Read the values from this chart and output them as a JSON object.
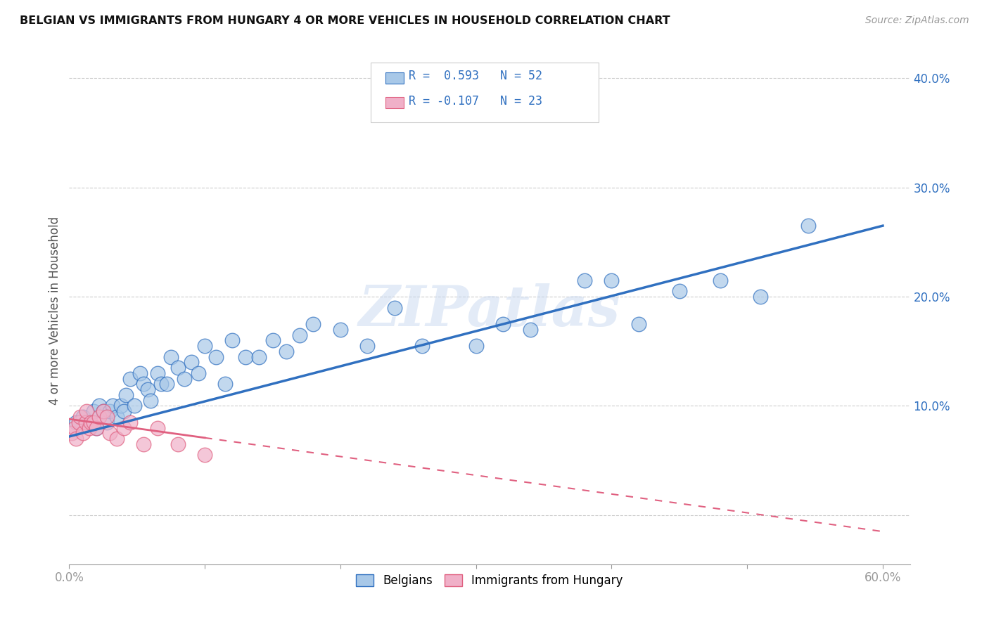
{
  "title": "BELGIAN VS IMMIGRANTS FROM HUNGARY 4 OR MORE VEHICLES IN HOUSEHOLD CORRELATION CHART",
  "source": "Source: ZipAtlas.com",
  "ylabel": "4 or more Vehicles in Household",
  "xlim": [
    0.0,
    0.62
  ],
  "ylim": [
    -0.045,
    0.42
  ],
  "ytick_vals": [
    0.0,
    0.1,
    0.2,
    0.3,
    0.4
  ],
  "ytick_labels": [
    "",
    "10.0%",
    "20.0%",
    "30.0%",
    "40.0%"
  ],
  "xtick_vals": [
    0.0,
    0.1,
    0.2,
    0.3,
    0.4,
    0.5,
    0.6
  ],
  "legend_line1": "R =  0.593   N = 52",
  "legend_line2": "R = -0.107   N = 23",
  "blue_color": "#a8c8e8",
  "pink_color": "#f0b0c8",
  "blue_line_color": "#3070c0",
  "pink_line_color": "#e06080",
  "watermark": "ZIPatlas",
  "blue_x": [
    0.005,
    0.01,
    0.015,
    0.018,
    0.02,
    0.022,
    0.025,
    0.028,
    0.03,
    0.032,
    0.035,
    0.038,
    0.04,
    0.042,
    0.045,
    0.048,
    0.052,
    0.055,
    0.058,
    0.06,
    0.065,
    0.068,
    0.072,
    0.075,
    0.08,
    0.085,
    0.09,
    0.095,
    0.1,
    0.108,
    0.115,
    0.12,
    0.13,
    0.14,
    0.15,
    0.16,
    0.17,
    0.18,
    0.2,
    0.22,
    0.24,
    0.26,
    0.3,
    0.32,
    0.34,
    0.38,
    0.4,
    0.42,
    0.45,
    0.48,
    0.51,
    0.545
  ],
  "blue_y": [
    0.085,
    0.09,
    0.085,
    0.095,
    0.08,
    0.1,
    0.095,
    0.085,
    0.095,
    0.1,
    0.09,
    0.1,
    0.095,
    0.11,
    0.125,
    0.1,
    0.13,
    0.12,
    0.115,
    0.105,
    0.13,
    0.12,
    0.12,
    0.145,
    0.135,
    0.125,
    0.14,
    0.13,
    0.155,
    0.145,
    0.12,
    0.16,
    0.145,
    0.145,
    0.16,
    0.15,
    0.165,
    0.175,
    0.17,
    0.155,
    0.19,
    0.155,
    0.155,
    0.175,
    0.17,
    0.215,
    0.215,
    0.175,
    0.205,
    0.215,
    0.2,
    0.265
  ],
  "pink_x": [
    0.002,
    0.004,
    0.005,
    0.007,
    0.008,
    0.01,
    0.012,
    0.013,
    0.015,
    0.016,
    0.018,
    0.02,
    0.022,
    0.025,
    0.028,
    0.03,
    0.035,
    0.04,
    0.045,
    0.055,
    0.065,
    0.08,
    0.1
  ],
  "pink_y": [
    0.075,
    0.08,
    0.07,
    0.085,
    0.09,
    0.075,
    0.085,
    0.095,
    0.08,
    0.085,
    0.085,
    0.08,
    0.09,
    0.095,
    0.09,
    0.075,
    0.07,
    0.08,
    0.085,
    0.065,
    0.08,
    0.065,
    0.055
  ],
  "blue_line_x0": 0.0,
  "blue_line_y0": 0.072,
  "blue_line_x1": 0.6,
  "blue_line_y1": 0.265,
  "pink_line_x0": 0.0,
  "pink_line_y0": 0.088,
  "pink_line_x1": 0.6,
  "pink_line_y1": -0.015
}
